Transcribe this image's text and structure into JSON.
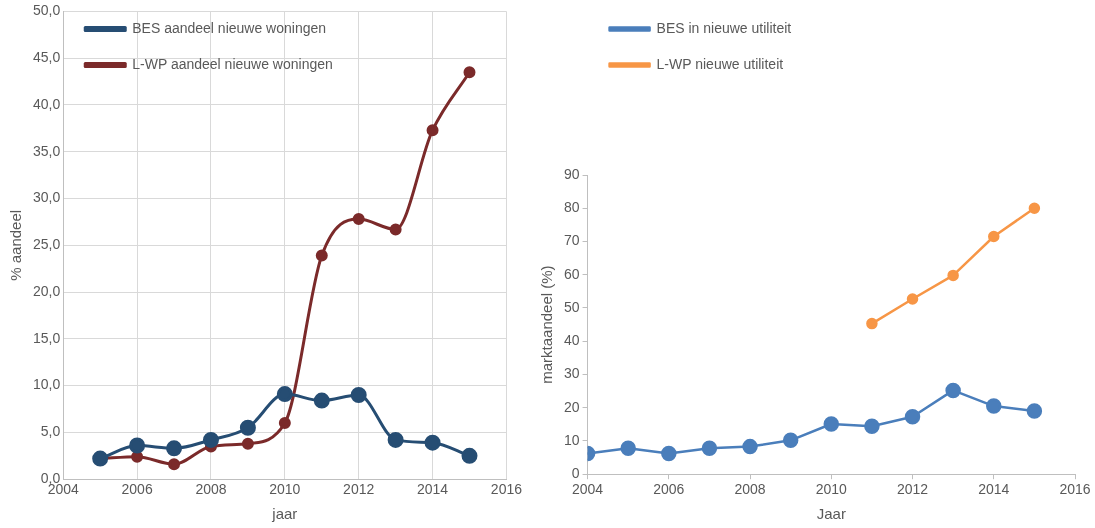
{
  "chart_data": [
    {
      "type": "line",
      "xlabel": "jaar",
      "ylabel": "% aandeel",
      "x": [
        2005,
        2006,
        2007,
        2008,
        2009,
        2010,
        2011,
        2012,
        2013,
        2014,
        2015
      ],
      "xlim": [
        2004,
        2016
      ],
      "xticks": [
        2004,
        2006,
        2008,
        2010,
        2012,
        2014,
        2016
      ],
      "ylim": [
        0,
        50
      ],
      "yticks": [
        {
          "value": 0,
          "label": "0,0"
        },
        {
          "value": 5,
          "label": "5,0"
        },
        {
          "value": 10,
          "label": "10,0"
        },
        {
          "value": 15,
          "label": "15,0"
        },
        {
          "value": 20,
          "label": "20,0"
        },
        {
          "value": 25,
          "label": "25,0"
        },
        {
          "value": 30,
          "label": "30,0"
        },
        {
          "value": 35,
          "label": "35,0"
        },
        {
          "value": 40,
          "label": "40,0"
        },
        {
          "value": 45,
          "label": "45,0"
        },
        {
          "value": 50,
          "label": "50,0"
        }
      ],
      "grid": true,
      "legend": "top left",
      "marker": "circle",
      "line_style": "solid",
      "series": [
        {
          "name": "BES aandeel nieuwe woningen",
          "color": "#264d73",
          "values": [
            2.2,
            3.6,
            3.3,
            4.2,
            5.5,
            9.1,
            8.4,
            9.0,
            4.2,
            3.9,
            2.5
          ]
        },
        {
          "name": "L-WP aandeel nieuwe woningen",
          "color": "#7b2a2a",
          "values": [
            2.2,
            2.4,
            1.6,
            3.5,
            3.8,
            6.0,
            23.9,
            27.8,
            26.7,
            37.3,
            43.5
          ]
        }
      ]
    },
    {
      "type": "line",
      "xlabel": "Jaar",
      "ylabel": "marktaandeel (%)",
      "xlim": [
        2004,
        2016
      ],
      "xticks": [
        2004,
        2006,
        2008,
        2010,
        2012,
        2014,
        2016
      ],
      "ylim": [
        0,
        90
      ],
      "yticks": [
        0,
        10,
        20,
        30,
        40,
        50,
        60,
        70,
        80,
        90
      ],
      "grid": false,
      "legend": "top left",
      "marker": "circle",
      "line_style": "solid",
      "series": [
        {
          "name": "BES in nieuwe utiliteit",
          "color": "#4a7ebb",
          "x": [
            2004,
            2005,
            2006,
            2007,
            2008,
            2009,
            2010,
            2011,
            2012,
            2013,
            2014,
            2015
          ],
          "values": [
            6.2,
            7.8,
            6.2,
            7.8,
            8.3,
            10.2,
            15.1,
            14.4,
            17.3,
            25.2,
            20.5,
            19.0
          ]
        },
        {
          "name": "L-WP nieuwe utiliteit",
          "color": "#f79646",
          "x": [
            2011,
            2012,
            2013,
            2014,
            2015
          ],
          "values": [
            45.3,
            52.7,
            59.8,
            71.5,
            80.0
          ]
        }
      ]
    }
  ]
}
